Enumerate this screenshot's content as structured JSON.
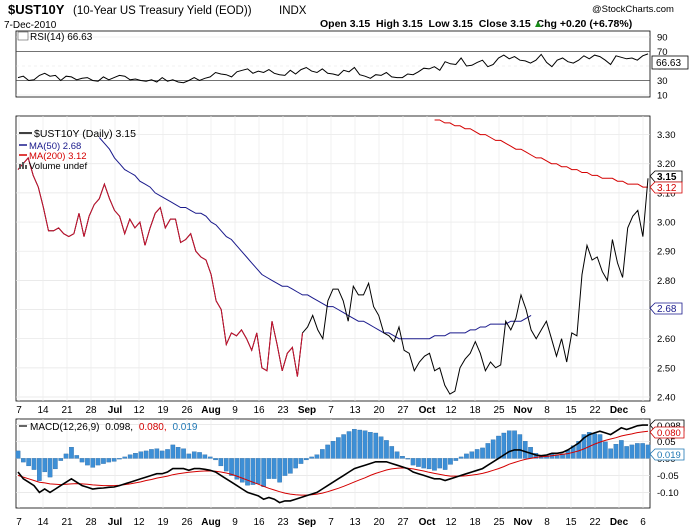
{
  "header": {
    "symbol": "$UST10Y",
    "name": "(10-Year US Treasury Yield (EOD))",
    "exchange": "INDX",
    "date": "7-Dec-2010",
    "ohlc": "Open 3.15  High 3.15  Low 3.15  Close 3.15  Chg +0.20 (+6.78%)",
    "chg_arrow": "▲",
    "copyright": "@StockCharts.com"
  },
  "rsi": {
    "label": "RSI(14) 66.63",
    "value_tag": "66.63",
    "ticks": [
      "90",
      "70",
      "50",
      "30",
      "10"
    ],
    "levels": [
      90,
      70,
      50,
      30,
      10
    ],
    "values": [
      34,
      36,
      30,
      31,
      37,
      40,
      36,
      37,
      30,
      36,
      35,
      31,
      33,
      34,
      30,
      29,
      35,
      31,
      34,
      37,
      36,
      31,
      32,
      30,
      29,
      31,
      28,
      34,
      29,
      31,
      28,
      27,
      30,
      34,
      30,
      33,
      35,
      41,
      39,
      38,
      35,
      42,
      44,
      46,
      40,
      43,
      41,
      45,
      40,
      38,
      37,
      44,
      39,
      45,
      48,
      43,
      41,
      46,
      40,
      39,
      37,
      44,
      42,
      48,
      38,
      36,
      33,
      38,
      37,
      41,
      35,
      34,
      34,
      39,
      38,
      42,
      47,
      46,
      49,
      44,
      56,
      53,
      52,
      61,
      50,
      51,
      55,
      58,
      49,
      52,
      61,
      65,
      60,
      63,
      58,
      57,
      54,
      58,
      66,
      55,
      49,
      58,
      61,
      56,
      54,
      58,
      64,
      60,
      65,
      63,
      58,
      52,
      64,
      62,
      60,
      61,
      58,
      64,
      66.63
    ]
  },
  "main": {
    "legend": [
      {
        "text": "$UST10Y (Daily) 3.15",
        "color": "#000000"
      },
      {
        "text": "MA(50) 2.68",
        "color": "#1a1a8c"
      },
      {
        "text": "MA(200) 3.12",
        "color": "#d40000"
      },
      {
        "text": "Volume undef",
        "color": "#000000"
      }
    ],
    "y_ticks": [
      "3.30",
      "3.20",
      "3.10",
      "3.00",
      "2.90",
      "2.80",
      "2.70",
      "2.60",
      "2.50",
      "2.40"
    ],
    "tags": {
      "price": "3.15",
      "ma200": "3.12",
      "ma50": "2.68"
    },
    "x_ticks": [
      "7",
      "14",
      "21",
      "28",
      "Jul",
      "12",
      "19",
      "26",
      "Aug",
      "9",
      "16",
      "23",
      "Sep",
      "7",
      "13",
      "20",
      "27",
      "Oct",
      "12",
      "18",
      "25",
      "Nov",
      "8",
      "15",
      "22",
      "Dec",
      "6"
    ]
  },
  "macd": {
    "label_prefix": "MACD(12,26,9)",
    "label_macd": "0.098,",
    "label_signal": "0.080,",
    "label_hist": "0.019",
    "y_ticks": [
      "0.10",
      "0.05",
      "0.00",
      "-0.05",
      "-0.10"
    ],
    "tags": {
      "macd": "0.098",
      "signal": "0.080",
      "hist": "0.019"
    }
  },
  "chart_data": [
    {
      "type": "line",
      "title": "$UST10Y (10-Year US Treasury Yield (EOD))",
      "series": [
        {
          "name": "$UST10Y (Daily)",
          "color": "#000000",
          "values": [
            3.18,
            3.2,
            3.22,
            3.16,
            3.12,
            3.05,
            2.97,
            2.97,
            2.98,
            2.96,
            2.95,
            2.96,
            3.03,
            2.95,
            3.02,
            3.06,
            3.08,
            3.13,
            3.08,
            3.04,
            3.02,
            2.96,
            3.01,
            2.98,
            3.0,
            2.92,
            2.98,
            3.03,
            3.05,
            2.98,
            3.01,
            3.01,
            2.93,
            2.94,
            2.96,
            2.9,
            2.88,
            2.87,
            2.82,
            2.73,
            2.7,
            2.58,
            2.62,
            2.61,
            2.63,
            2.6,
            2.56,
            2.62,
            2.5,
            2.49,
            2.66,
            2.58,
            2.49,
            2.55,
            2.57,
            2.47,
            2.62,
            2.64,
            2.68,
            2.63,
            2.6,
            2.73,
            2.77,
            2.77,
            2.73,
            2.66,
            2.78,
            2.75,
            2.75,
            2.79,
            2.71,
            2.68,
            2.62,
            2.61,
            2.59,
            2.64,
            2.56,
            2.55,
            2.49,
            2.52,
            2.54,
            2.55,
            2.49,
            2.5,
            2.44,
            2.41,
            2.42,
            2.5,
            2.53,
            2.55,
            2.59,
            2.55,
            2.49,
            2.52,
            2.5,
            2.51,
            2.66,
            2.63,
            2.67,
            2.75,
            2.7,
            2.63,
            2.6,
            2.63,
            2.66,
            2.6,
            2.54,
            2.6,
            2.52,
            2.62,
            2.61,
            2.82,
            2.92,
            2.87,
            2.88,
            2.83,
            2.8,
            2.94,
            2.86,
            2.81,
            2.98,
            3.02,
            3.04,
            2.95,
            3.15
          ]
        },
        {
          "name": "MA(50)",
          "color": "#1a1a8c",
          "values": [
            null,
            null,
            null,
            null,
            null,
            null,
            null,
            null,
            null,
            null,
            null,
            null,
            null,
            null,
            null,
            null,
            3.29,
            3.27,
            3.25,
            3.22,
            3.2,
            3.18,
            3.17,
            3.16,
            3.14,
            3.13,
            3.12,
            3.1,
            3.09,
            3.08,
            3.07,
            3.06,
            3.05,
            3.05,
            3.04,
            3.03,
            3.03,
            3.02,
            3.0,
            2.99,
            2.97,
            2.95,
            2.94,
            2.92,
            2.9,
            2.88,
            2.86,
            2.84,
            2.82,
            2.81,
            2.8,
            2.79,
            2.78,
            2.78,
            2.77,
            2.76,
            2.75,
            2.75,
            2.74,
            2.73,
            2.72,
            2.71,
            2.71,
            2.7,
            2.69,
            2.68,
            2.67,
            2.66,
            2.66,
            2.65,
            2.64,
            2.63,
            2.62,
            2.62,
            2.61,
            2.6,
            2.6,
            2.6,
            2.6,
            2.6,
            2.6,
            2.6,
            2.61,
            2.61,
            2.61,
            2.62,
            2.62,
            2.62,
            2.62,
            2.63,
            2.63,
            2.64,
            2.64,
            2.65,
            2.65,
            2.65,
            2.65,
            2.66,
            2.66,
            2.66,
            2.67,
            2.68
          ]
        },
        {
          "name": "MA(200)",
          "color": "#d40000",
          "values": [
            null,
            null,
            null,
            null,
            null,
            null,
            null,
            null,
            null,
            null,
            null,
            null,
            null,
            null,
            null,
            null,
            null,
            null,
            null,
            null,
            null,
            null,
            null,
            null,
            null,
            null,
            null,
            null,
            null,
            null,
            null,
            null,
            null,
            null,
            null,
            null,
            null,
            null,
            null,
            null,
            null,
            null,
            null,
            null,
            null,
            null,
            null,
            null,
            null,
            null,
            null,
            null,
            null,
            null,
            null,
            null,
            null,
            null,
            null,
            null,
            null,
            null,
            null,
            null,
            null,
            null,
            null,
            null,
            null,
            null,
            null,
            null,
            null,
            null,
            null,
            null,
            null,
            null,
            null,
            null,
            null,
            null,
            3.35,
            3.35,
            3.34,
            3.34,
            3.33,
            3.33,
            3.32,
            3.32,
            3.31,
            3.3,
            3.3,
            3.29,
            3.28,
            3.28,
            3.27,
            3.26,
            3.25,
            3.25,
            3.24,
            3.23,
            3.22,
            3.22,
            3.21,
            3.2,
            3.2,
            3.19,
            3.19,
            3.18,
            3.18,
            3.17,
            3.17,
            3.16,
            3.16,
            3.15,
            3.15,
            3.15,
            3.14,
            3.14,
            3.13,
            3.13,
            3.13,
            3.12,
            3.12
          ]
        }
      ],
      "xlabel": "",
      "ylabel": "",
      "ylim": [
        2.4,
        3.35
      ]
    },
    {
      "type": "line",
      "title": "MACD(12,26,9)",
      "macd": [
        -0.04,
        -0.06,
        -0.07,
        -0.08,
        -0.1,
        -0.09,
        -0.1,
        -0.09,
        -0.08,
        -0.07,
        -0.06,
        -0.07,
        -0.08,
        -0.085,
        -0.09,
        -0.088,
        -0.087,
        -0.085,
        -0.084,
        -0.08,
        -0.075,
        -0.07,
        -0.065,
        -0.06,
        -0.055,
        -0.05,
        -0.045,
        -0.045,
        -0.04,
        -0.03,
        -0.03,
        -0.03,
        -0.035,
        -0.03,
        -0.03,
        -0.032,
        -0.035,
        -0.04,
        -0.05,
        -0.06,
        -0.07,
        -0.08,
        -0.09,
        -0.1,
        -0.105,
        -0.11,
        -0.12,
        -0.115,
        -0.12,
        -0.13,
        -0.125,
        -0.125,
        -0.12,
        -0.115,
        -0.11,
        -0.105,
        -0.1,
        -0.09,
        -0.08,
        -0.07,
        -0.06,
        -0.05,
        -0.04,
        -0.03,
        -0.025,
        -0.02,
        -0.015,
        -0.01,
        -0.01,
        -0.01,
        -0.015,
        -0.02,
        -0.025,
        -0.03,
        -0.04,
        -0.045,
        -0.05,
        -0.055,
        -0.06,
        -0.06,
        -0.065,
        -0.06,
        -0.055,
        -0.05,
        -0.045,
        -0.04,
        -0.035,
        -0.03,
        -0.02,
        -0.01,
        0.0,
        0.01,
        0.02,
        0.025,
        0.025,
        0.02,
        0.015,
        0.01,
        0.008,
        0.01,
        0.015,
        0.015,
        0.018,
        0.025,
        0.035,
        0.045,
        0.06,
        0.07,
        0.075,
        0.08,
        0.075,
        0.07,
        0.08,
        0.09,
        0.085,
        0.09,
        0.096,
        0.098,
        0.098
      ],
      "signal": [
        -0.05,
        -0.055,
        -0.06,
        -0.065,
        -0.07,
        -0.072,
        -0.075,
        -0.076,
        -0.077,
        -0.076,
        -0.075,
        -0.074,
        -0.075,
        -0.076,
        -0.078,
        -0.079,
        -0.08,
        -0.08,
        -0.08,
        -0.079,
        -0.077,
        -0.075,
        -0.072,
        -0.069,
        -0.065,
        -0.062,
        -0.058,
        -0.055,
        -0.052,
        -0.048,
        -0.045,
        -0.043,
        -0.041,
        -0.039,
        -0.038,
        -0.037,
        -0.037,
        -0.038,
        -0.04,
        -0.043,
        -0.047,
        -0.052,
        -0.058,
        -0.064,
        -0.07,
        -0.076,
        -0.082,
        -0.088,
        -0.093,
        -0.098,
        -0.102,
        -0.105,
        -0.107,
        -0.108,
        -0.108,
        -0.107,
        -0.105,
        -0.102,
        -0.098,
        -0.093,
        -0.088,
        -0.082,
        -0.076,
        -0.069,
        -0.063,
        -0.057,
        -0.05,
        -0.044,
        -0.039,
        -0.034,
        -0.031,
        -0.029,
        -0.028,
        -0.029,
        -0.031,
        -0.034,
        -0.037,
        -0.041,
        -0.044,
        -0.047,
        -0.05,
        -0.052,
        -0.052,
        -0.052,
        -0.051,
        -0.049,
        -0.047,
        -0.044,
        -0.04,
        -0.035,
        -0.03,
        -0.024,
        -0.017,
        -0.012,
        -0.007,
        -0.003,
        0.0,
        0.003,
        0.005,
        0.006,
        0.008,
        0.01,
        0.012,
        0.014,
        0.018,
        0.022,
        0.028,
        0.035,
        0.042,
        0.048,
        0.053,
        0.057,
        0.061,
        0.066,
        0.069,
        0.072,
        0.076,
        0.078,
        0.08
      ],
      "ylim": [
        -0.14,
        0.11
      ]
    }
  ]
}
